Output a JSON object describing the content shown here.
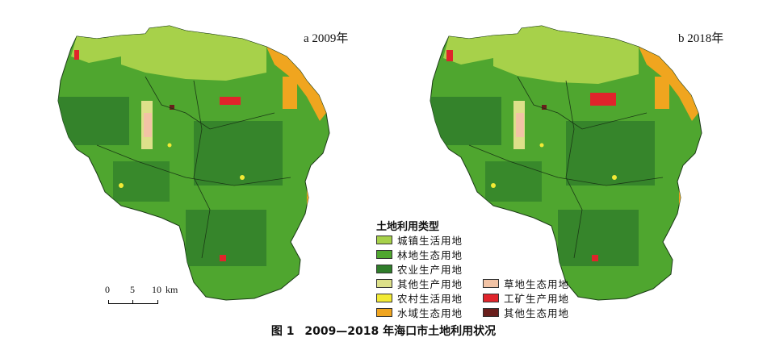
{
  "maps": [
    {
      "panel_label": "a 2009年"
    },
    {
      "panel_label": "b 2018年"
    }
  ],
  "legend": {
    "title": "土地利用类型",
    "items": [
      {
        "label": "城镇生活用地",
        "color": "#a7d14a"
      },
      {
        "label": "林地生态用地",
        "color": "#4fa62f"
      },
      {
        "label": "农业生产用地",
        "color": "#2f7d2a"
      },
      {
        "label": "其他生产用地",
        "color": "#dde08a"
      },
      {
        "label": "农村生活用地",
        "color": "#f2ea35"
      },
      {
        "label": "水域生态用地",
        "color": "#f0a51f"
      },
      {
        "label": "草地生态用地",
        "color": "#f2c3a5"
      },
      {
        "label": "工矿生产用地",
        "color": "#e0242b"
      },
      {
        "label": "其他生态用地",
        "color": "#6a1f1c"
      }
    ]
  },
  "scale_bar": {
    "ticks": [
      "0",
      "5",
      "10"
    ],
    "unit": "km"
  },
  "caption": {
    "figure_no": "图 1",
    "text": "2009—2018 年海口市土地利用状况"
  }
}
